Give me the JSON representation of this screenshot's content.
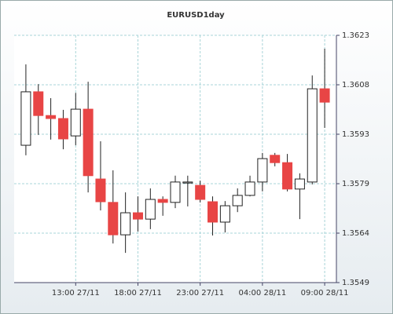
{
  "chart_data": {
    "type": "candlestick",
    "title": "EURUSD1day",
    "categories": [
      null,
      null,
      null,
      null,
      "13:00 27/11",
      null,
      null,
      null,
      null,
      "18:00 27/11",
      null,
      null,
      null,
      null,
      "23:00 27/11",
      null,
      null,
      null,
      null,
      "04:00 28/11",
      null,
      null,
      null,
      null,
      "09:00 28/11"
    ],
    "open": [
      1.35901,
      1.36061,
      1.3599,
      1.35981,
      1.35929,
      1.36009,
      1.358,
      1.3573,
      1.35633,
      1.35699,
      1.3568,
      1.35739,
      1.3573,
      1.35788,
      1.35781,
      1.35732,
      1.35671,
      1.3572,
      1.35751,
      1.35791,
      1.35871,
      1.35849,
      1.3577,
      1.35791,
      1.3607
    ],
    "high": [
      1.36143,
      1.36084,
      1.36042,
      1.36007,
      1.36058,
      1.36091,
      1.35913,
      1.35826,
      1.3576,
      1.35748,
      1.35772,
      1.35748,
      1.3581,
      1.3581,
      1.35795,
      1.35748,
      1.35734,
      1.35772,
      1.3581,
      1.35878,
      1.35878,
      1.35875,
      1.35817,
      1.3611,
      1.3619
    ],
    "low": [
      1.35871,
      1.35932,
      1.35918,
      1.35889,
      1.35901,
      1.3576,
      1.35706,
      1.35607,
      1.35579,
      1.35643,
      1.3565,
      1.3569,
      1.35713,
      1.35718,
      1.3573,
      1.35631,
      1.3564,
      1.35701,
      1.35748,
      1.35763,
      1.35838,
      1.35763,
      1.3568,
      1.35784,
      1.35953
    ],
    "close": [
      1.36061,
      1.3599,
      1.35981,
      1.3592,
      1.36009,
      1.3581,
      1.35732,
      1.35633,
      1.35699,
      1.3568,
      1.35739,
      1.3573,
      1.35791,
      1.35791,
      1.35739,
      1.35671,
      1.3572,
      1.35751,
      1.35791,
      1.35861,
      1.35849,
      1.3577,
      1.358,
      1.3607,
      1.3603
    ],
    "up_color": "#ffffff",
    "down_color": "#e84545",
    "ylim": [
      1.3549,
      1.3623
    ],
    "yticks": [
      1.3549,
      {
        "value": 1.35638,
        "label": "1.3564"
      },
      {
        "value": 1.35786,
        "label": "1.3579"
      },
      {
        "value": 1.35934,
        "label": "1.3593"
      },
      {
        "value": 1.36082,
        "label": "1.3608"
      },
      1.3623
    ],
    "grid": true
  }
}
